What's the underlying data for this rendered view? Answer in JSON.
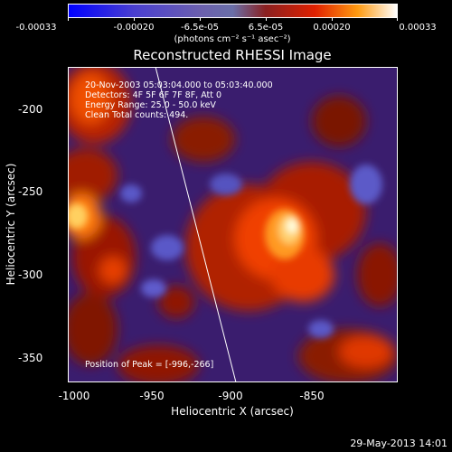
{
  "colorbar": {
    "tick_labels": [
      "-0.00033",
      "-0.00020",
      "-6.5e-05",
      "6.5e-05",
      "0.00020",
      "0.00033"
    ],
    "units": "(photons cm⁻² s⁻¹ asec⁻²)",
    "colors": [
      "#0000ff",
      "#6b5fae",
      "#8a2020",
      "#e02000",
      "#ff9a10",
      "#ffffff"
    ]
  },
  "title": "Reconstructed RHESSI Image",
  "annotations": {
    "time_range": "20-Nov-2003 05:03:04.000 to 05:03:40.000",
    "detectors": "Detectors: 4F 5F 6F 7F 8F, Att 0",
    "energy": "Energy Range: 25.0 - 50.0 keV",
    "clean": "Clean     Total counts: 494.",
    "peak": "Position of Peak = [-996,-266]"
  },
  "axes": {
    "xlabel": "Heliocentric X (arcsec)",
    "ylabel": "Heliocentric Y (arcsec)",
    "xticks": [
      "-1000",
      "-950",
      "-900",
      "-850"
    ],
    "yticks": [
      "-200",
      "-250",
      "-300",
      "-350"
    ]
  },
  "footer": "29-May-2013 14:01"
}
